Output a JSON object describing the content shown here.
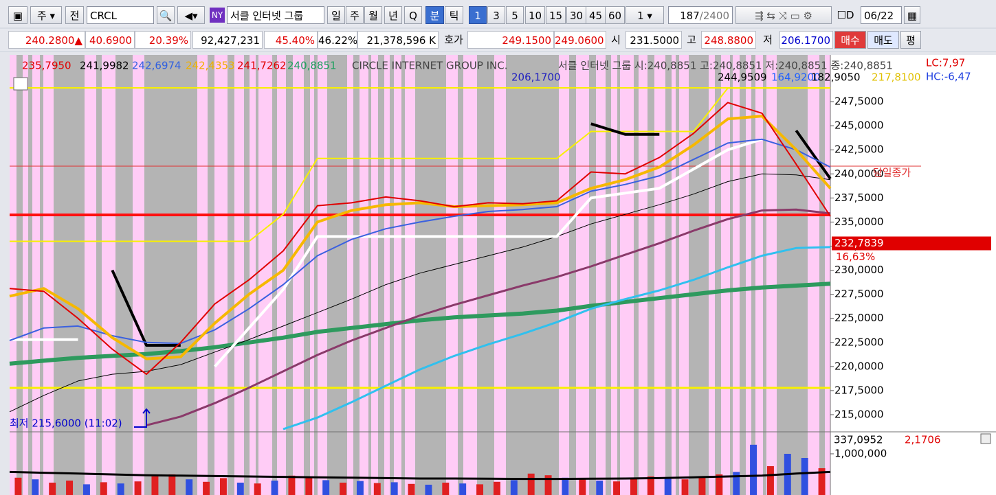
{
  "toolbar": {
    "market": "주",
    "mode": "전",
    "symbol": "CRCL",
    "exchange": "NY",
    "name": "서클 인터넷 그룹",
    "periods": [
      "일",
      "주",
      "월",
      "년",
      "Q"
    ],
    "units": [
      "분",
      "틱"
    ],
    "intervals": [
      "1",
      "3",
      "5",
      "10",
      "15",
      "30",
      "45",
      "60"
    ],
    "multiplier": "1",
    "count": "187",
    "total": "/2400",
    "d_check": "D",
    "date": "06/22"
  },
  "quote_bar": {
    "price": "240.2800▲",
    "change": "40.6900",
    "change_pct": "20.39%",
    "volume": "92,427,231",
    "ratio1": "45.40%",
    "ratio2": "46.22%",
    "amount": "21,378,596 K",
    "ask_label": "호가",
    "ask": "249.1500",
    "bid": "249.0600",
    "open_label": "시",
    "open": "231.5000",
    "high_label": "고",
    "high": "248.8800",
    "low_label": "저",
    "low": "206.1700",
    "buy": "매수",
    "sell": "매도",
    "avg": "평"
  },
  "chart_data": [
    {
      "type": "line",
      "title": "CIRCLE INTERNET GROUP INC.",
      "subtitle": "서클 인터넷 그룹 시:240,8851 고:240,8851 저:240,8851 종:240,8851",
      "legend_values": [
        {
          "text": "235,7950",
          "color": "#e00000"
        },
        {
          "text": "241,9982",
          "color": "#000000"
        },
        {
          "text": "242,6974",
          "color": "#3060e0"
        },
        {
          "text": "242,4353",
          "color": "#f0b000"
        },
        {
          "text": "241,7262",
          "color": "#e00000"
        },
        {
          "text": "240,8851",
          "color": "#20a060"
        }
      ],
      "upper_labels": [
        {
          "text": "206,1700",
          "color": "#2020c0"
        },
        {
          "text": "244,9509",
          "color": "#000000"
        },
        {
          "text": "164,9200",
          "color": "#2060ff"
        },
        {
          "text": "182,9050",
          "color": "#000000"
        },
        {
          "text": "217,8100",
          "color": "#e0c000"
        }
      ],
      "ylim": [
        213.29,
        252.35
      ],
      "yticks": [
        {
          "value": 247.5,
          "label": "247,5000"
        },
        {
          "value": 245,
          "label": "245,0000"
        },
        {
          "value": 242.5,
          "label": "242,5000"
        },
        {
          "value": 240,
          "label": "240,0000"
        },
        {
          "value": 237.5,
          "label": "237,5000"
        },
        {
          "value": 235,
          "label": "235,0000"
        },
        {
          "value": 232.5,
          "label": "232,5000"
        },
        {
          "value": 230,
          "label": "230,0000"
        },
        {
          "value": 227.5,
          "label": "227,5000"
        },
        {
          "value": 225,
          "label": "225,0000"
        },
        {
          "value": 222.5,
          "label": "222,5000"
        },
        {
          "value": 220,
          "label": "220,0000"
        },
        {
          "value": 217.5,
          "label": "217,5000"
        },
        {
          "value": 215,
          "label": "215,0000"
        }
      ],
      "reference_lines": [
        {
          "value": 235.74,
          "color": "#ff1010",
          "width": 4
        },
        {
          "value": 217.78,
          "color": "#f8f000",
          "width": 3
        },
        {
          "value": 240.8,
          "color": "#e03030",
          "width": 1,
          "label": "당일종가"
        },
        {
          "value": 248.93,
          "color": "#f8f000",
          "width": 2
        }
      ],
      "current_price": {
        "value": 232.7839,
        "label": "232,7839",
        "change": "16,63%"
      },
      "lc": "LC:7,97",
      "hc": "HC:-6,47",
      "annotation": "최저 215,6000 (11:02)",
      "series": [
        {
          "color": "#2e9a5e",
          "width": 6,
          "values": [
            220.3,
            220.6,
            220.9,
            221.1,
            221.3,
            221.6,
            222.0,
            222.5,
            223.0,
            223.6,
            224.0,
            224.4,
            224.8,
            225.1,
            225.3,
            225.5,
            225.8,
            226.3,
            226.7,
            227.1,
            227.5,
            227.9,
            228.2,
            228.4,
            228.6
          ]
        },
        {
          "color": "#30c0ee",
          "width": 3,
          "values": [
            null,
            null,
            null,
            null,
            null,
            null,
            null,
            null,
            213.5,
            214.7,
            216.3,
            218.0,
            219.7,
            221.1,
            222.3,
            223.4,
            224.6,
            226.0,
            227.0,
            227.9,
            229.0,
            230.3,
            231.5,
            232.3,
            232.4
          ]
        },
        {
          "color": "#8a3a6a",
          "width": 3,
          "values": [
            null,
            null,
            null,
            null,
            213.9,
            214.8,
            216.2,
            217.8,
            219.5,
            221.2,
            222.7,
            224.0,
            225.3,
            226.4,
            227.4,
            228.4,
            229.3,
            230.4,
            231.6,
            232.8,
            234.1,
            235.3,
            236.2,
            236.3,
            235.9
          ]
        },
        {
          "color": "#000000",
          "width": 1,
          "values": [
            215.3,
            217.0,
            218.5,
            219.2,
            219.5,
            220.2,
            221.5,
            222.8,
            224.2,
            225.6,
            227.0,
            228.5,
            229.7,
            230.6,
            231.5,
            232.4,
            233.5,
            234.8,
            235.8,
            236.8,
            237.9,
            239.2,
            240.0,
            239.9,
            239.4
          ]
        },
        {
          "color": "#f8f000",
          "width": 2,
          "values": [
            233.0,
            233.0,
            233.0,
            233.0,
            233.0,
            233.0,
            233.0,
            233.0,
            235.8,
            241.6,
            241.6,
            241.6,
            241.6,
            241.6,
            241.6,
            241.6,
            241.6,
            244.4,
            244.4,
            244.4,
            244.4,
            248.9,
            248.9,
            248.9,
            248.9
          ]
        },
        {
          "color": "#ffffff",
          "width": 4,
          "values": [
            222.8,
            222.8,
            222.8,
            null,
            null,
            null,
            220.0,
            224.0,
            228.0,
            233.5,
            233.5,
            233.5,
            233.5,
            233.5,
            233.5,
            233.5,
            233.5,
            237.5,
            238.0,
            238.5,
            240.5,
            242.5,
            243.6,
            null,
            null
          ]
        },
        {
          "color": "#000000",
          "width": 4,
          "values": [
            null,
            null,
            null,
            230.0,
            222.2,
            222.2,
            null,
            null,
            null,
            null,
            null,
            null,
            null,
            null,
            null,
            null,
            null,
            245.2,
            244.1,
            244.1,
            null,
            null,
            null,
            244.5,
            239.5
          ]
        },
        {
          "color": "#3a60e0",
          "width": 2,
          "values": [
            222.7,
            224.0,
            224.2,
            223.2,
            222.5,
            222.4,
            223.8,
            226.0,
            228.5,
            231.5,
            233.2,
            234.3,
            235.0,
            235.6,
            236.1,
            236.3,
            236.6,
            238.2,
            238.9,
            239.8,
            241.5,
            243.2,
            243.6,
            242.5,
            240.7
          ]
        },
        {
          "color": "#f6b800",
          "width": 4,
          "values": [
            227.3,
            228.1,
            226.0,
            223.0,
            220.8,
            221.0,
            224.5,
            227.5,
            230.0,
            235.0,
            236.2,
            236.8,
            237.0,
            236.6,
            236.7,
            236.8,
            237.0,
            238.5,
            239.4,
            240.7,
            243.0,
            245.7,
            246.0,
            242.5,
            238.5
          ]
        },
        {
          "color": "#e00000",
          "width": 2,
          "values": [
            228.1,
            227.8,
            225.0,
            221.8,
            219.2,
            222.5,
            226.5,
            229.0,
            232.0,
            236.7,
            237.0,
            237.6,
            237.2,
            236.6,
            237.0,
            236.9,
            237.2,
            240.2,
            240.0,
            241.7,
            244.2,
            247.4,
            246.3,
            241.0,
            235.6
          ]
        }
      ]
    },
    {
      "type": "bar",
      "ma_label": "337,0952",
      "ma_change": "2,1706",
      "ylim": [
        0,
        1517000
      ],
      "yticks": [
        {
          "value": 1000000,
          "label": "1,000,000"
        }
      ],
      "values": [
        420000,
        380000,
        300000,
        350000,
        260000,
        310000,
        280000,
        330000,
        450000,
        500000,
        380000,
        320000,
        410000,
        300000,
        280000,
        350000,
        470000,
        430000,
        360000,
        300000,
        340000,
        290000,
        310000,
        270000,
        250000,
        300000,
        280000,
        260000,
        320000,
        360000,
        520000,
        480000,
        420000,
        380000,
        350000,
        330000,
        400000,
        450000,
        410000,
        380000,
        420000,
        500000,
        560000,
        1220000,
        700000,
        1000000,
        900000,
        650000
      ],
      "colors": [
        "#e02020",
        "#3050e0",
        "#e02020",
        "#e02020",
        "#3050e0",
        "#e02020",
        "#3050e0",
        "#e02020",
        "#e02020",
        "#e02020",
        "#3050e0",
        "#e02020",
        "#e02020",
        "#3050e0",
        "#e02020",
        "#3050e0",
        "#e02020",
        "#e02020",
        "#3050e0",
        "#e02020",
        "#3050e0",
        "#e02020",
        "#3050e0",
        "#e02020",
        "#3050e0",
        "#e02020",
        "#3050e0",
        "#e02020",
        "#e02020",
        "#3050e0",
        "#e02020",
        "#e02020",
        "#3050e0",
        "#e02020",
        "#3050e0",
        "#e02020",
        "#e02020",
        "#e02020",
        "#3050e0",
        "#e02020",
        "#e02020",
        "#e02020",
        "#3050e0",
        "#3050e0",
        "#e02020",
        "#3050e0",
        "#3050e0",
        "#e02020"
      ],
      "series": [
        {
          "color": "#000000",
          "width": 3,
          "values": [
            560000,
            540000,
            520000,
            500000,
            480000,
            470000,
            460000,
            450000,
            440000,
            430000,
            420000,
            410000,
            400000,
            400000,
            395000,
            390000,
            390000,
            395000,
            400000,
            410000,
            430000,
            450000,
            470000,
            520000,
            560000
          ]
        }
      ]
    }
  ]
}
